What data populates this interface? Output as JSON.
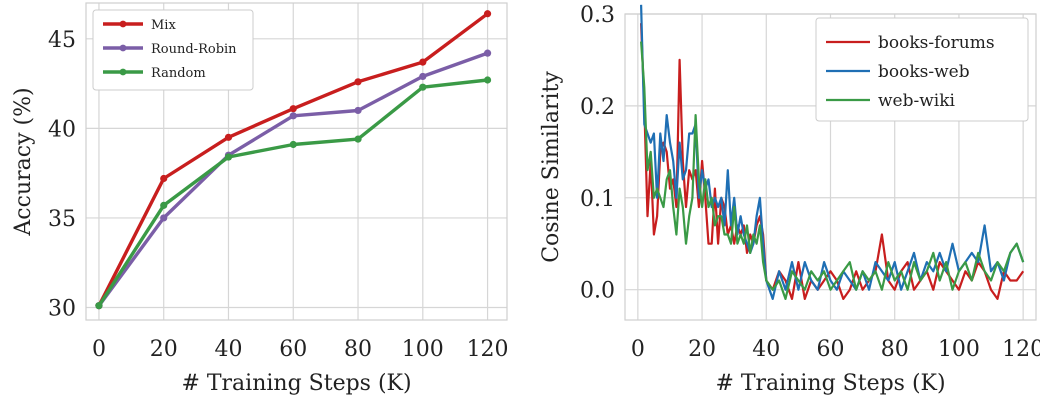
{
  "chart_data": [
    {
      "type": "line",
      "xlabel": "# Training Steps (K)",
      "ylabel": "Accuracy (%)",
      "x": [
        0,
        20,
        40,
        60,
        80,
        100,
        120
      ],
      "xlim": [
        -4,
        126
      ],
      "ylim": [
        29.3,
        47.0
      ],
      "xticks": [
        0,
        20,
        40,
        60,
        80,
        100,
        120
      ],
      "yticks": [
        30,
        35,
        40,
        45
      ],
      "grid": true,
      "markers": true,
      "legend_position": "top-left",
      "series": [
        {
          "name": "Mix",
          "color": "#c81e1e",
          "values": [
            30.1,
            37.2,
            39.5,
            41.1,
            42.6,
            43.7,
            46.4
          ]
        },
        {
          "name": "Round-Robin",
          "color": "#7b5ea7",
          "values": [
            30.1,
            35.0,
            38.5,
            40.7,
            41.0,
            42.9,
            44.2
          ]
        },
        {
          "name": "Random",
          "color": "#3a9a46",
          "values": [
            30.1,
            35.7,
            38.4,
            39.1,
            39.4,
            42.3,
            42.7
          ]
        }
      ]
    },
    {
      "type": "line",
      "xlabel": "# Training Steps (K)",
      "ylabel": "Cosine Similarity",
      "xlim": [
        -4,
        124
      ],
      "ylim": [
        -0.033,
        0.3
      ],
      "xticks": [
        0,
        20,
        40,
        60,
        80,
        100,
        120
      ],
      "yticks": [
        0.0,
        0.1,
        0.2,
        0.3
      ],
      "ytick_labels": [
        "0.0",
        "0.1",
        "0.2",
        "0.3"
      ],
      "grid": true,
      "markers": false,
      "legend_position": "top-right",
      "series": [
        {
          "name": "books-forums",
          "color": "#c81e1e",
          "x": [
            1,
            2,
            3,
            4,
            5,
            6,
            7,
            8,
            9,
            10,
            11,
            12,
            13,
            14,
            15,
            16,
            17,
            18,
            19,
            20,
            21,
            22,
            23,
            24,
            25,
            26,
            27,
            28,
            29,
            30,
            31,
            32,
            33,
            34,
            35,
            36,
            37,
            38,
            39,
            40,
            42,
            44,
            46,
            48,
            50,
            52,
            54,
            56,
            58,
            60,
            62,
            64,
            66,
            68,
            70,
            72,
            74,
            76,
            78,
            80,
            82,
            84,
            86,
            88,
            90,
            92,
            94,
            96,
            98,
            100,
            102,
            104,
            106,
            108,
            110,
            112,
            114,
            116,
            118,
            120
          ],
          "values": [
            0.29,
            0.2,
            0.08,
            0.14,
            0.06,
            0.08,
            0.15,
            0.16,
            0.15,
            0.11,
            0.12,
            0.09,
            0.25,
            0.14,
            0.09,
            0.13,
            0.12,
            0.13,
            0.09,
            0.14,
            0.1,
            0.05,
            0.05,
            0.11,
            0.05,
            0.1,
            0.09,
            0.06,
            0.07,
            0.05,
            0.07,
            0.06,
            0.07,
            0.04,
            0.06,
            0.05,
            0.07,
            0.08,
            0.06,
            0.01,
            0.0,
            0.02,
            0.01,
            -0.01,
            0.03,
            -0.01,
            0.01,
            0.0,
            0.01,
            0.02,
            0.01,
            -0.01,
            0.0,
            0.02,
            0.0,
            0.01,
            0.02,
            0.06,
            0.01,
            0.0,
            0.02,
            0.03,
            0.0,
            0.01,
            0.02,
            0.0,
            0.03,
            0.02,
            0.01,
            0.0,
            0.02,
            0.01,
            0.03,
            0.02,
            0.0,
            -0.01,
            0.02,
            0.01,
            0.01,
            0.02
          ]
        },
        {
          "name": "books-web",
          "color": "#1f6fb4",
          "x": [
            1,
            2,
            3,
            4,
            5,
            6,
            7,
            8,
            9,
            10,
            11,
            12,
            13,
            14,
            15,
            16,
            17,
            18,
            19,
            20,
            21,
            22,
            23,
            24,
            25,
            26,
            27,
            28,
            29,
            30,
            31,
            32,
            33,
            34,
            35,
            36,
            37,
            38,
            39,
            40,
            42,
            44,
            46,
            48,
            50,
            52,
            54,
            56,
            58,
            60,
            62,
            64,
            66,
            68,
            70,
            72,
            74,
            76,
            78,
            80,
            82,
            84,
            86,
            88,
            90,
            92,
            94,
            96,
            98,
            100,
            102,
            104,
            106,
            108,
            110,
            112,
            114,
            116,
            118,
            120
          ],
          "values": [
            0.31,
            0.18,
            0.17,
            0.16,
            0.17,
            0.1,
            0.17,
            0.14,
            0.19,
            0.16,
            0.14,
            0.1,
            0.16,
            0.12,
            0.13,
            0.17,
            0.17,
            0.18,
            0.1,
            0.13,
            0.11,
            0.12,
            0.09,
            0.1,
            0.09,
            0.1,
            0.07,
            0.13,
            0.07,
            0.1,
            0.06,
            0.08,
            0.06,
            0.05,
            0.04,
            0.05,
            0.08,
            0.1,
            0.05,
            0.01,
            -0.01,
            0.02,
            0.0,
            0.03,
            0.0,
            0.03,
            0.01,
            0.0,
            0.03,
            0.01,
            0.0,
            0.02,
            0.01,
            0.0,
            0.02,
            0.0,
            0.03,
            0.02,
            0.01,
            0.03,
            0.0,
            0.02,
            0.04,
            0.01,
            0.03,
            0.02,
            0.04,
            0.02,
            0.05,
            0.02,
            0.03,
            0.04,
            0.03,
            0.07,
            0.02,
            0.03,
            0.01,
            0.04,
            0.05,
            0.03
          ]
        },
        {
          "name": "web-wiki",
          "color": "#3a9a46",
          "x": [
            1,
            2,
            3,
            4,
            5,
            6,
            7,
            8,
            9,
            10,
            11,
            12,
            13,
            14,
            15,
            16,
            17,
            18,
            19,
            20,
            21,
            22,
            23,
            24,
            25,
            26,
            27,
            28,
            29,
            30,
            31,
            32,
            33,
            34,
            35,
            36,
            37,
            38,
            39,
            40,
            42,
            44,
            46,
            48,
            50,
            52,
            54,
            56,
            58,
            60,
            62,
            64,
            66,
            68,
            70,
            72,
            74,
            76,
            78,
            80,
            82,
            84,
            86,
            88,
            90,
            92,
            94,
            96,
            98,
            100,
            102,
            104,
            106,
            108,
            110,
            112,
            114,
            116,
            118,
            120
          ],
          "values": [
            0.27,
            0.22,
            0.13,
            0.15,
            0.1,
            0.11,
            0.1,
            0.09,
            0.12,
            0.13,
            0.09,
            0.06,
            0.11,
            0.09,
            0.05,
            0.08,
            0.1,
            0.19,
            0.12,
            0.09,
            0.12,
            0.09,
            0.1,
            0.07,
            0.08,
            0.08,
            0.06,
            0.06,
            0.05,
            0.09,
            0.05,
            0.06,
            0.05,
            0.07,
            0.04,
            0.06,
            0.05,
            0.07,
            0.03,
            0.01,
            0.0,
            0.01,
            -0.01,
            0.02,
            0.01,
            0.0,
            0.02,
            0.01,
            0.02,
            0.0,
            0.01,
            0.02,
            0.03,
            0.0,
            0.02,
            0.01,
            0.02,
            0.0,
            0.03,
            0.01,
            0.02,
            0.0,
            0.03,
            0.01,
            0.02,
            0.04,
            0.01,
            0.03,
            0.0,
            0.02,
            0.03,
            0.01,
            0.04,
            0.02,
            0.01,
            0.03,
            0.02,
            0.04,
            0.05,
            0.03
          ]
        }
      ]
    }
  ]
}
